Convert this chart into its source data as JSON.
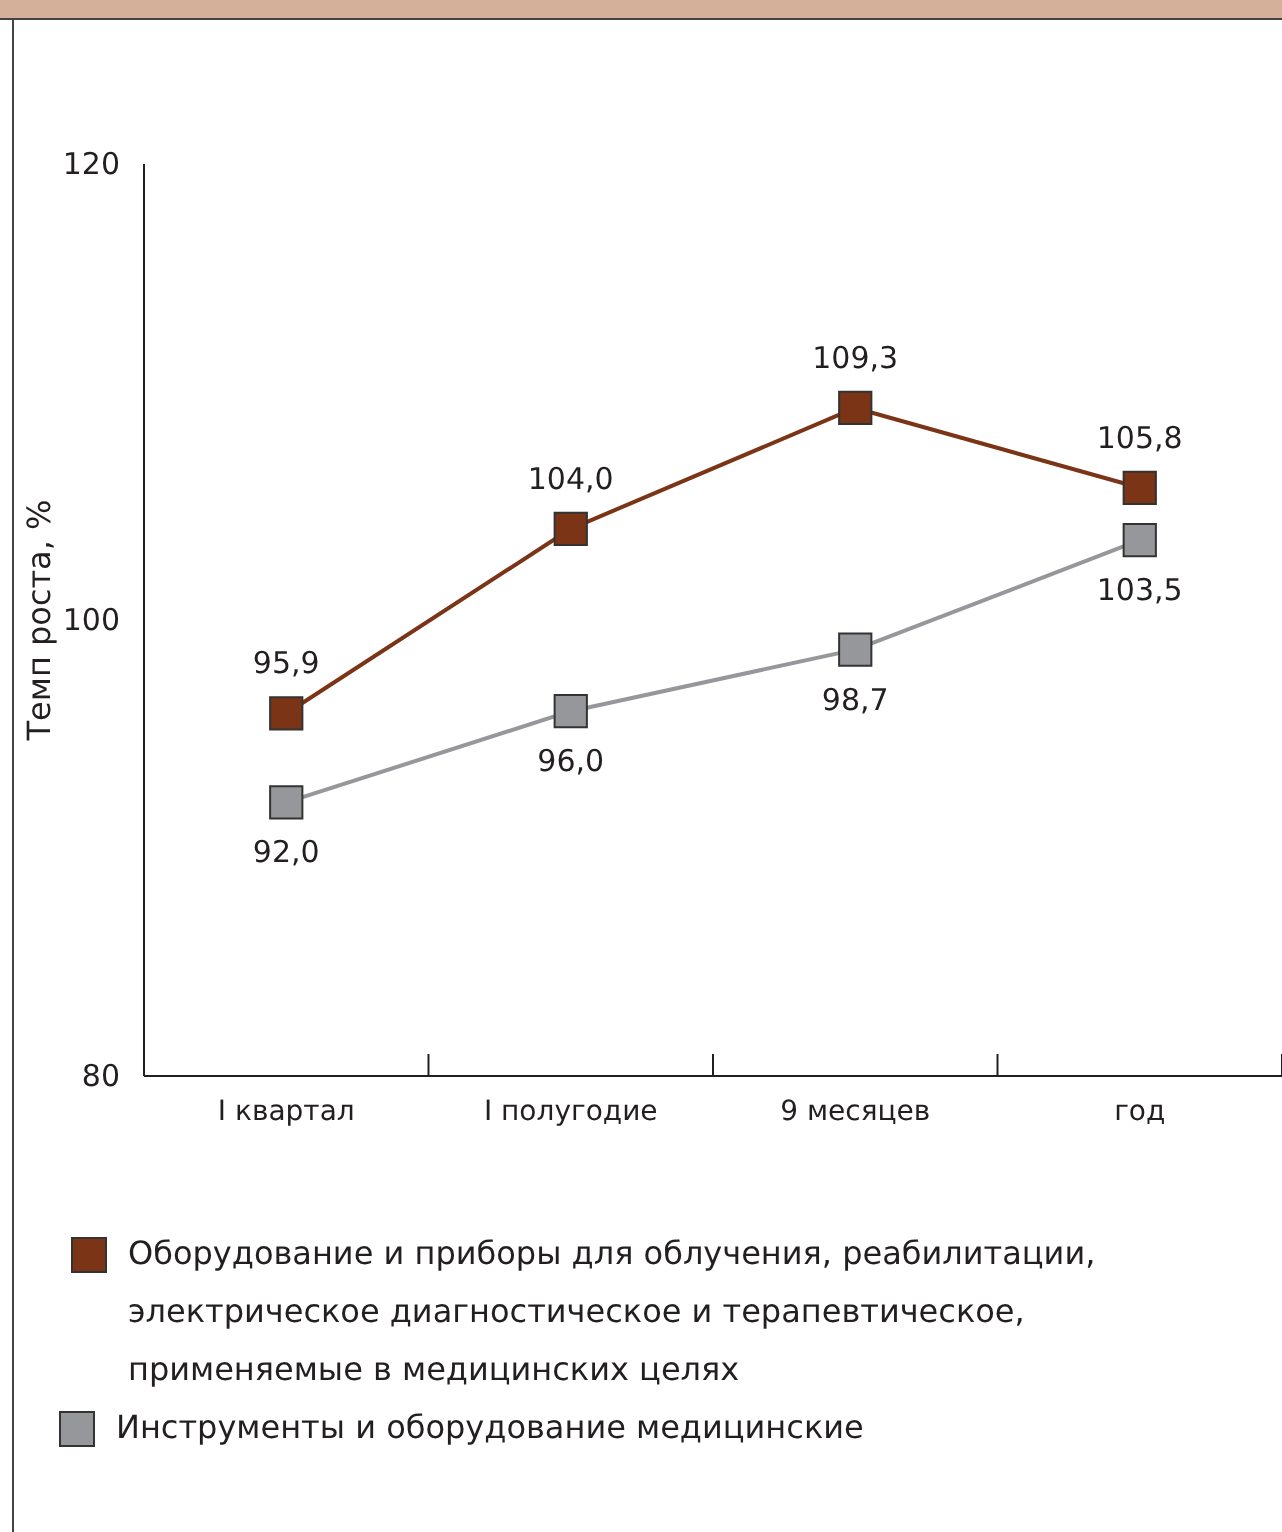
{
  "chart_data": {
    "type": "line",
    "ylabel": "Темп роста, %",
    "categories": [
      "I квартал",
      "I полугодие",
      "9 месяцев",
      "год"
    ],
    "series": [
      {
        "name": "Оборудование и приборы для облучения, реабилитации, электрическое диагностическое и терапевтическое, применяемые в медицинских целях",
        "color": "#7b3416",
        "values": [
          95.9,
          104.0,
          109.3,
          105.8
        ],
        "value_labels": [
          "95,9",
          "104,0",
          "109,3",
          "105,8"
        ]
      },
      {
        "name": "Инструменты и оборудование медицинские",
        "color": "#96979b",
        "values": [
          92.0,
          96.0,
          98.7,
          103.5
        ],
        "value_labels": [
          "92,0",
          "96,0",
          "98,7",
          "103,5"
        ]
      }
    ],
    "ylim": [
      80,
      120
    ],
    "yticks": [
      80,
      100,
      120
    ],
    "grid": false,
    "legend": "bottom",
    "marker": "square",
    "line_style": "solid"
  }
}
